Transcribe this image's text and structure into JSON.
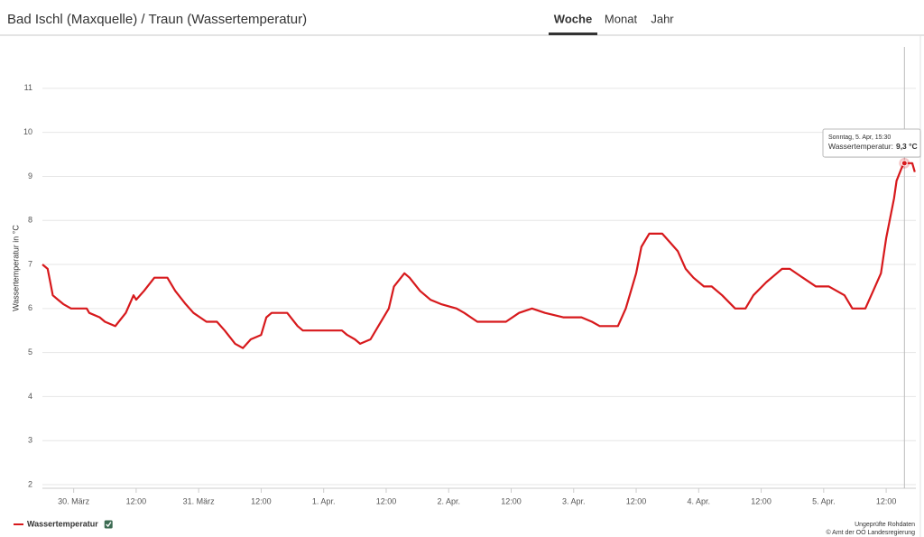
{
  "tabs": [
    "Woche",
    "Monat",
    "Jahr"
  ],
  "active_tab": 0,
  "footer": [
    "Ungeprüfte Rohdaten",
    "© Amt der OÖ Landesregierung"
  ],
  "chart_data": {
    "type": "line",
    "title": "Bad Ischl (Maxquelle) / Traun (Wassertemperatur)",
    "y_label": "Wassertemperatur in °C",
    "x": [
      -6,
      -5,
      -4.5,
      -4,
      -3,
      -2,
      -0.5,
      2.5,
      3,
      5,
      6,
      8,
      10,
      11.5,
      12,
      13.5,
      15.5,
      18,
      19.5,
      21.5,
      23,
      25.5,
      27.5,
      29,
      31,
      32.5,
      34,
      36,
      37,
      38,
      41,
      43,
      44,
      51.5,
      52.5,
      54,
      55,
      57,
      58.5,
      60.5,
      61.5,
      63.5,
      64.5,
      66.5,
      68.5,
      70.5,
      73.5,
      75,
      77.5,
      83,
      85.5,
      88,
      90.5,
      94,
      97.5,
      99.5,
      101,
      104.5,
      106,
      108,
      109,
      110.5,
      113,
      114.5,
      116,
      117.5,
      119,
      121,
      122.5,
      124.5,
      127,
      129,
      130.5,
      133,
      135,
      136,
      137.5,
      140,
      142.5,
      145,
      148,
      149.5,
      152,
      153.5,
      155,
      156,
      157.5,
      158,
      159,
      159.5,
      161,
      161.5
    ],
    "series": [
      {
        "name": "Wassertemperatur",
        "color": "#d7191c",
        "values": [
          7.0,
          6.9,
          6.6,
          6.3,
          6.2,
          6.1,
          6.0,
          6.0,
          5.9,
          5.8,
          5.7,
          5.6,
          5.9,
          6.3,
          6.2,
          6.4,
          6.7,
          6.7,
          6.4,
          6.1,
          5.9,
          5.7,
          5.7,
          5.5,
          5.2,
          5.1,
          5.3,
          5.4,
          5.8,
          5.9,
          5.9,
          5.6,
          5.5,
          5.5,
          5.4,
          5.3,
          5.2,
          5.3,
          5.6,
          6.0,
          6.5,
          6.8,
          6.7,
          6.4,
          6.2,
          6.1,
          6.0,
          5.9,
          5.7,
          5.7,
          5.9,
          6.0,
          5.9,
          5.8,
          5.8,
          5.7,
          5.6,
          5.6,
          6.0,
          6.8,
          7.4,
          7.7,
          7.7,
          7.5,
          7.3,
          6.9,
          6.7,
          6.5,
          6.5,
          6.3,
          6.0,
          6.0,
          6.3,
          6.6,
          6.8,
          6.9,
          6.9,
          6.7,
          6.5,
          6.5,
          6.3,
          6.0,
          6.0,
          6.4,
          6.8,
          7.6,
          8.5,
          8.9,
          9.2,
          9.3,
          9.3,
          9.1
        ]
      }
    ],
    "xlim": [
      -6,
      161.7
    ],
    "xticks": [
      {
        "value": 0,
        "label": "30. März"
      },
      {
        "value": 12,
        "label": "12:00"
      },
      {
        "value": 24,
        "label": "31. März"
      },
      {
        "value": 36,
        "label": "12:00"
      },
      {
        "value": 48,
        "label": "1. Apr."
      },
      {
        "value": 60,
        "label": "12:00"
      },
      {
        "value": 72,
        "label": "2. Apr."
      },
      {
        "value": 84,
        "label": "12:00"
      },
      {
        "value": 96,
        "label": "3. Apr."
      },
      {
        "value": 108,
        "label": "12:00"
      },
      {
        "value": 120,
        "label": "4. Apr."
      },
      {
        "value": 132,
        "label": "12:00"
      },
      {
        "value": 144,
        "label": "5. Apr."
      },
      {
        "value": 156,
        "label": "12:00"
      }
    ],
    "ylim": [
      2,
      11.94
    ],
    "yticks": [
      2,
      3,
      4,
      5,
      6,
      7,
      8,
      9,
      10,
      11
    ],
    "grid": true,
    "legend": "bottom-left",
    "tooltip": {
      "index": 89,
      "title": "Sonntag, 5. Apr, 15:30",
      "series_label": "Wassertemperatur:",
      "value_label": "9,3 °C"
    }
  }
}
